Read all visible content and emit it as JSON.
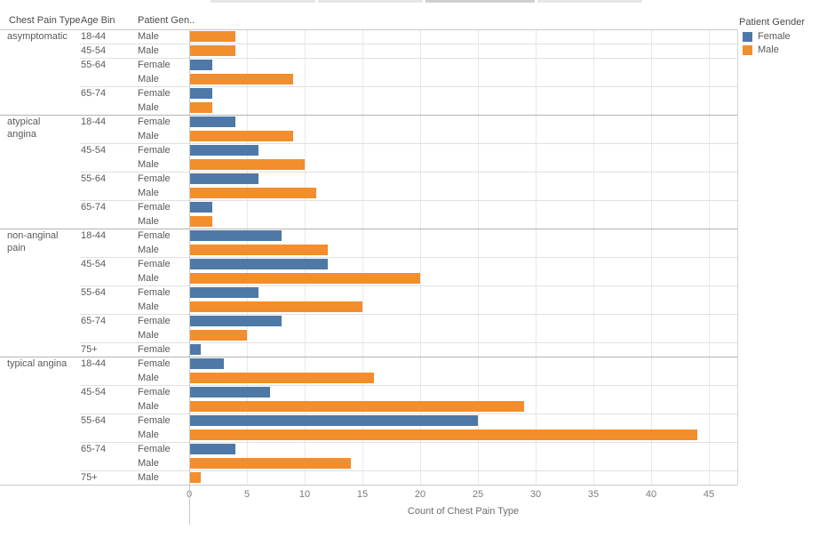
{
  "columns": {
    "chest_pain_type": "Chest Pain Type",
    "age_bin": "Age Bin",
    "patient_gender": "Patient Gen.."
  },
  "legend": {
    "title": "Patient Gender",
    "items": [
      {
        "label": "Female",
        "color": "#4e79a7"
      },
      {
        "label": "Male",
        "color": "#f28e2b"
      }
    ]
  },
  "axis": {
    "title": "Count of Chest Pain Type",
    "ticks": [
      0,
      5,
      10,
      15,
      20,
      25,
      30,
      35,
      40,
      45
    ],
    "max": 47.5
  },
  "chart_data": {
    "type": "bar",
    "orientation": "horizontal",
    "title": "",
    "xlabel": "Count of Chest Pain Type",
    "xlim": [
      0,
      47.5
    ],
    "grid": "vertical",
    "legend_title": "Patient Gender",
    "series_colors": {
      "Female": "#4e79a7",
      "Male": "#f28e2b"
    },
    "groups": [
      {
        "chest_pain_type": "asymptomatic",
        "bins": [
          {
            "age_bin": "18-44",
            "bars": [
              {
                "gender": "Male",
                "value": 4
              }
            ]
          },
          {
            "age_bin": "45-54",
            "bars": [
              {
                "gender": "Male",
                "value": 4
              }
            ]
          },
          {
            "age_bin": "55-64",
            "bars": [
              {
                "gender": "Female",
                "value": 2
              },
              {
                "gender": "Male",
                "value": 9
              }
            ]
          },
          {
            "age_bin": "65-74",
            "bars": [
              {
                "gender": "Female",
                "value": 2
              },
              {
                "gender": "Male",
                "value": 2
              }
            ]
          }
        ]
      },
      {
        "chest_pain_type": "atypical angina",
        "bins": [
          {
            "age_bin": "18-44",
            "bars": [
              {
                "gender": "Female",
                "value": 4
              },
              {
                "gender": "Male",
                "value": 9
              }
            ]
          },
          {
            "age_bin": "45-54",
            "bars": [
              {
                "gender": "Female",
                "value": 6
              },
              {
                "gender": "Male",
                "value": 10
              }
            ]
          },
          {
            "age_bin": "55-64",
            "bars": [
              {
                "gender": "Female",
                "value": 6
              },
              {
                "gender": "Male",
                "value": 11
              }
            ]
          },
          {
            "age_bin": "65-74",
            "bars": [
              {
                "gender": "Female",
                "value": 2
              },
              {
                "gender": "Male",
                "value": 2
              }
            ]
          }
        ]
      },
      {
        "chest_pain_type": "non-anginal pain",
        "bins": [
          {
            "age_bin": "18-44",
            "bars": [
              {
                "gender": "Female",
                "value": 8
              },
              {
                "gender": "Male",
                "value": 12
              }
            ]
          },
          {
            "age_bin": "45-54",
            "bars": [
              {
                "gender": "Female",
                "value": 12
              },
              {
                "gender": "Male",
                "value": 20
              }
            ]
          },
          {
            "age_bin": "55-64",
            "bars": [
              {
                "gender": "Female",
                "value": 6
              },
              {
                "gender": "Male",
                "value": 15
              }
            ]
          },
          {
            "age_bin": "65-74",
            "bars": [
              {
                "gender": "Female",
                "value": 8
              },
              {
                "gender": "Male",
                "value": 5
              }
            ]
          },
          {
            "age_bin": "75+",
            "bars": [
              {
                "gender": "Female",
                "value": 1
              }
            ]
          }
        ]
      },
      {
        "chest_pain_type": "typical angina",
        "bins": [
          {
            "age_bin": "18-44",
            "bars": [
              {
                "gender": "Female",
                "value": 3
              },
              {
                "gender": "Male",
                "value": 16
              }
            ]
          },
          {
            "age_bin": "45-54",
            "bars": [
              {
                "gender": "Female",
                "value": 7
              },
              {
                "gender": "Male",
                "value": 29
              }
            ]
          },
          {
            "age_bin": "55-64",
            "bars": [
              {
                "gender": "Female",
                "value": 25
              },
              {
                "gender": "Male",
                "value": 44
              }
            ]
          },
          {
            "age_bin": "65-74",
            "bars": [
              {
                "gender": "Female",
                "value": 4
              },
              {
                "gender": "Male",
                "value": 14
              }
            ]
          },
          {
            "age_bin": "75+",
            "bars": [
              {
                "gender": "Male",
                "value": 1
              }
            ]
          }
        ]
      }
    ]
  }
}
